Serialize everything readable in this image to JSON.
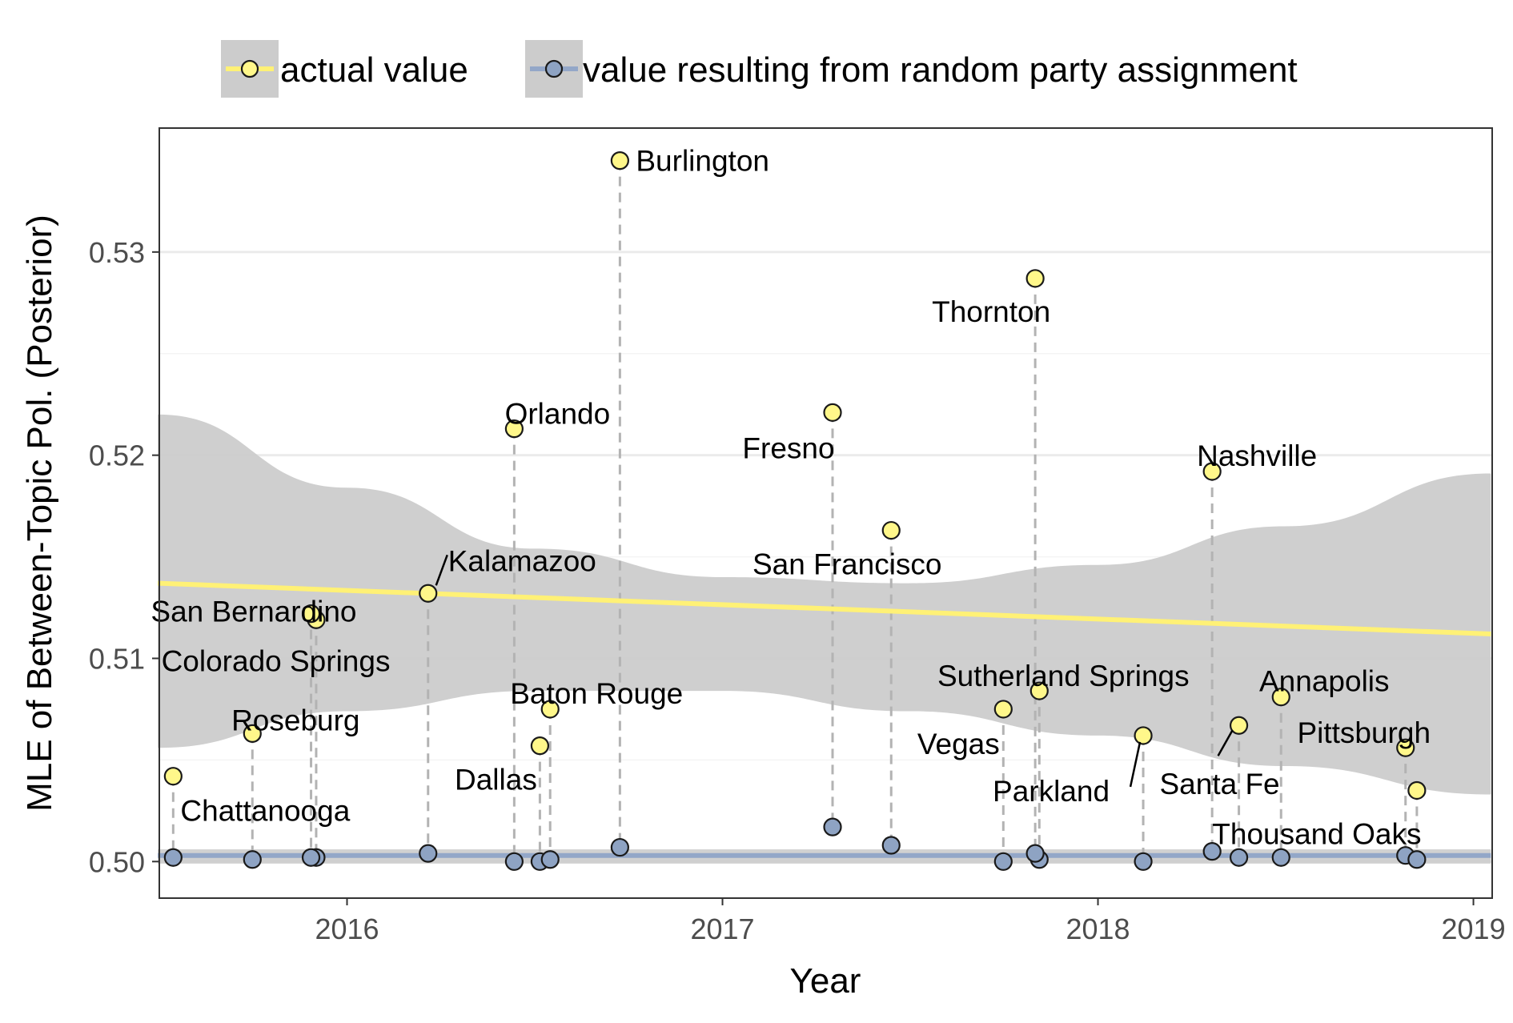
{
  "chart_data": {
    "type": "scatter",
    "xlabel": "Year",
    "ylabel": "MLE of Between-Topic Pol. (Posterior)",
    "xlim": [
      2015.5,
      2019.05
    ],
    "ylim": [
      0.4982,
      0.5361
    ],
    "x_ticks": [
      2016,
      2017,
      2018,
      2019
    ],
    "y_ticks": [
      0.5,
      0.51,
      0.52,
      0.53
    ],
    "x_tick_labels": [
      "2016",
      "2017",
      "2018",
      "2019"
    ],
    "y_tick_labels": [
      "0.50",
      "0.51",
      "0.52",
      "0.53"
    ],
    "grid": true,
    "legend_position": "top",
    "legend": [
      {
        "label": "actual value",
        "color": "#fff176"
      },
      {
        "label": "value resulting from random party assignment",
        "color": "#8da0cb"
      }
    ],
    "colors": {
      "actual_point": "#fff78a",
      "actual_line": "#fff176",
      "random_point": "#8ea3c3",
      "random_line": "#93a7c8",
      "band": "#cccccc",
      "connector": "#b3b3b3",
      "grid": "#ebebeb"
    },
    "series": [
      {
        "name": "actual value",
        "points": [
          {
            "label": "Chattanooga",
            "date": "2015-07-16",
            "value": 0.5042
          },
          {
            "label": "Roseburg",
            "date": "2015-10-01",
            "value": 0.5063
          },
          {
            "label": "San Bernardino",
            "date": "2015-12-02",
            "value": 0.5119
          },
          {
            "label": "Colorado Springs",
            "date": "2015-11-27",
            "value": 0.5122
          },
          {
            "label": "Kalamazoo",
            "date": "2016-03-20",
            "value": 0.5132
          },
          {
            "label": "Orlando",
            "date": "2016-06-12",
            "value": 0.5213
          },
          {
            "label": "Dallas",
            "date": "2016-07-07",
            "value": 0.5057
          },
          {
            "label": "Baton Rouge",
            "date": "2016-07-17",
            "value": 0.5075
          },
          {
            "label": "Burlington",
            "date": "2016-09-23",
            "value": 0.5345
          },
          {
            "label": "Fresno",
            "date": "2017-04-18",
            "value": 0.5221
          },
          {
            "label": "San Francisco",
            "date": "2017-06-14",
            "value": 0.5163
          },
          {
            "label": "Vegas",
            "date": "2017-10-01",
            "value": 0.5075
          },
          {
            "label": "Sutherland Springs",
            "date": "2017-11-05",
            "value": 0.5084
          },
          {
            "label": "Thornton",
            "date": "2017-11-01",
            "value": 0.5287
          },
          {
            "label": "Parkland",
            "date": "2018-02-14",
            "value": 0.5062
          },
          {
            "label": "Nashville",
            "date": "2018-04-22",
            "value": 0.5192
          },
          {
            "label": "Santa Fe",
            "date": "2018-05-18",
            "value": 0.5067
          },
          {
            "label": "Annapolis",
            "date": "2018-06-28",
            "value": 0.5081
          },
          {
            "label": "Pittsburgh",
            "date": "2018-10-27",
            "value": 0.5056
          },
          {
            "label": "Thousand Oaks",
            "date": "2018-11-07",
            "value": 0.5035
          }
        ],
        "trend": {
          "start": {
            "date": "2015-07-01",
            "value": 0.5137
          },
          "end": {
            "date": "2019-01-18",
            "value": 0.5112
          }
        },
        "band_upper": [
          {
            "date": "2015-07-01",
            "value": 0.522
          },
          {
            "date": "2016-01-01",
            "value": 0.5184
          },
          {
            "date": "2016-07-01",
            "value": 0.5154
          },
          {
            "date": "2017-01-01",
            "value": 0.514
          },
          {
            "date": "2017-07-01",
            "value": 0.5137
          },
          {
            "date": "2018-01-01",
            "value": 0.5146
          },
          {
            "date": "2018-07-01",
            "value": 0.5165
          },
          {
            "date": "2019-01-18",
            "value": 0.5191
          }
        ],
        "band_lower": [
          {
            "date": "2015-07-01",
            "value": 0.5056
          },
          {
            "date": "2016-01-01",
            "value": 0.5074
          },
          {
            "date": "2016-07-01",
            "value": 0.5084
          },
          {
            "date": "2017-01-01",
            "value": 0.5084
          },
          {
            "date": "2017-07-01",
            "value": 0.5074
          },
          {
            "date": "2018-01-01",
            "value": 0.5062
          },
          {
            "date": "2018-07-01",
            "value": 0.5047
          },
          {
            "date": "2019-01-18",
            "value": 0.5033
          }
        ]
      },
      {
        "name": "value resulting from random party assignment",
        "points": [
          {
            "date": "2015-07-16",
            "value": 0.5002
          },
          {
            "date": "2015-10-01",
            "value": 0.5001
          },
          {
            "date": "2015-12-02",
            "value": 0.5002
          },
          {
            "date": "2015-11-27",
            "value": 0.5002
          },
          {
            "date": "2016-03-20",
            "value": 0.5004
          },
          {
            "date": "2016-06-12",
            "value": 0.5
          },
          {
            "date": "2016-07-07",
            "value": 0.5
          },
          {
            "date": "2016-07-17",
            "value": 0.5001
          },
          {
            "date": "2016-09-23",
            "value": 0.5007
          },
          {
            "date": "2017-04-18",
            "value": 0.5017
          },
          {
            "date": "2017-06-14",
            "value": 0.5008
          },
          {
            "date": "2017-10-01",
            "value": 0.5
          },
          {
            "date": "2017-11-05",
            "value": 0.5001
          },
          {
            "date": "2017-11-01",
            "value": 0.5004
          },
          {
            "date": "2018-02-14",
            "value": 0.5
          },
          {
            "date": "2018-04-22",
            "value": 0.5005
          },
          {
            "date": "2018-05-18",
            "value": 0.5002
          },
          {
            "date": "2018-06-28",
            "value": 0.5002
          },
          {
            "date": "2018-10-27",
            "value": 0.5003
          },
          {
            "date": "2018-11-07",
            "value": 0.5001
          }
        ],
        "trend": {
          "start": {
            "date": "2015-07-01",
            "value": 0.5003
          },
          "end": {
            "date": "2019-01-18",
            "value": 0.5003
          }
        },
        "band": {
          "upper": 0.5006,
          "lower": 0.4999
        }
      }
    ]
  }
}
